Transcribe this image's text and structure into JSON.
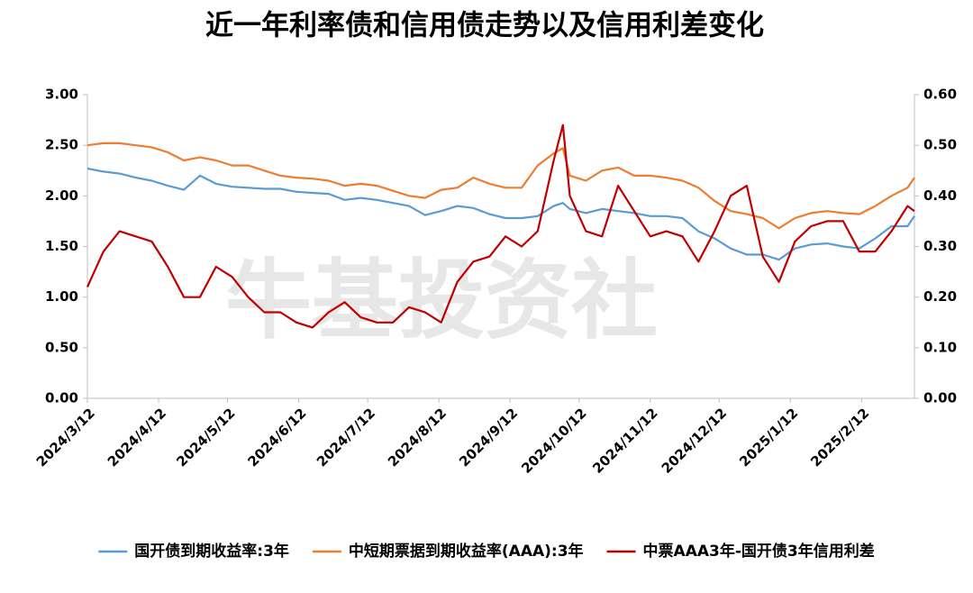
{
  "chart_data": {
    "type": "line",
    "title": "近一年利率债和信用债走势以及信用利差变化",
    "watermark": "牛基投资社",
    "x": [
      "2024/3/12",
      "2024/3/19",
      "2024/3/26",
      "2024/4/2",
      "2024/4/9",
      "2024/4/16",
      "2024/4/23",
      "2024/4/30",
      "2024/5/7",
      "2024/5/14",
      "2024/5/21",
      "2024/5/28",
      "2024/6/4",
      "2024/6/11",
      "2024/6/18",
      "2024/6/25",
      "2024/7/2",
      "2024/7/9",
      "2024/7/16",
      "2024/7/23",
      "2024/7/30",
      "2024/8/6",
      "2024/8/13",
      "2024/8/20",
      "2024/8/27",
      "2024/9/3",
      "2024/9/10",
      "2024/9/17",
      "2024/9/24",
      "2024/10/1",
      "2024/10/5",
      "2024/10/8",
      "2024/10/15",
      "2024/10/22",
      "2024/10/29",
      "2024/11/5",
      "2024/11/12",
      "2024/11/19",
      "2024/11/26",
      "2024/12/3",
      "2024/12/10",
      "2024/12/17",
      "2024/12/24",
      "2024/12/31",
      "2025/1/7",
      "2025/1/14",
      "2025/1/21",
      "2025/1/28",
      "2025/2/4",
      "2025/2/11",
      "2025/2/18",
      "2025/2/25",
      "2025/3/4",
      "2025/3/7"
    ],
    "xlim": [
      "2024/3/12",
      "2025/3/7"
    ],
    "xticks": [
      "2024/3/12",
      "2024/4/12",
      "2024/5/12",
      "2024/6/12",
      "2024/7/12",
      "2024/8/12",
      "2024/9/12",
      "2024/10/12",
      "2024/11/12",
      "2024/12/12",
      "2025/1/12",
      "2025/2/12"
    ],
    "ylim": [
      0,
      3
    ],
    "yticks": [
      {
        "value": 0,
        "label": "0.00"
      },
      {
        "value": 0.5,
        "label": "0.50"
      },
      {
        "value": 1,
        "label": "1.00"
      },
      {
        "value": 1.5,
        "label": "1.50"
      },
      {
        "value": 2,
        "label": "2.00"
      },
      {
        "value": 2.5,
        "label": "2.50"
      },
      {
        "value": 3,
        "label": "3.00"
      }
    ],
    "y2lim": [
      0,
      0.6
    ],
    "y2ticks": [
      {
        "value": 0,
        "label": "0.00"
      },
      {
        "value": 0.1,
        "label": "0.10"
      },
      {
        "value": 0.2,
        "label": "0.20"
      },
      {
        "value": 0.3,
        "label": "0.30"
      },
      {
        "value": 0.4,
        "label": "0.40"
      },
      {
        "value": 0.5,
        "label": "0.50"
      },
      {
        "value": 0.6,
        "label": "0.60"
      }
    ],
    "legend": "bottom",
    "series": [
      {
        "name": "国开债到期收益率:3年",
        "color": "#5b9bd5",
        "values": [
          2.27,
          2.24,
          2.22,
          2.18,
          2.15,
          2.1,
          2.06,
          2.2,
          2.12,
          2.09,
          2.08,
          2.07,
          2.07,
          2.04,
          2.03,
          2.02,
          1.96,
          1.98,
          1.96,
          1.93,
          1.9,
          1.81,
          1.85,
          1.9,
          1.88,
          1.82,
          1.78,
          1.78,
          1.8,
          1.9,
          1.93,
          1.87,
          1.83,
          1.87,
          1.85,
          1.83,
          1.8,
          1.8,
          1.78,
          1.65,
          1.58,
          1.48,
          1.42,
          1.42,
          1.37,
          1.48,
          1.52,
          1.53,
          1.5,
          1.48,
          1.58,
          1.7,
          1.7,
          1.8
        ]
      },
      {
        "name": "中短期票据到期收益率(AAA):3年",
        "color": "#ed7d31",
        "values": [
          2.5,
          2.52,
          2.52,
          2.5,
          2.48,
          2.43,
          2.35,
          2.38,
          2.35,
          2.3,
          2.3,
          2.25,
          2.2,
          2.18,
          2.17,
          2.15,
          2.1,
          2.12,
          2.1,
          2.05,
          2.0,
          1.98,
          2.06,
          2.08,
          2.18,
          2.12,
          2.08,
          2.08,
          2.3,
          2.42,
          2.47,
          2.2,
          2.15,
          2.25,
          2.28,
          2.2,
          2.2,
          2.18,
          2.15,
          2.08,
          1.95,
          1.85,
          1.82,
          1.78,
          1.68,
          1.78,
          1.83,
          1.85,
          1.83,
          1.82,
          1.9,
          2.0,
          2.08,
          2.18
        ]
      },
      {
        "name": "中票AAA3年-国开债3年信用利差",
        "color": "#c00000",
        "axis": "y2",
        "values": [
          0.22,
          0.29,
          0.33,
          0.32,
          0.31,
          0.26,
          0.2,
          0.2,
          0.26,
          0.24,
          0.2,
          0.17,
          0.17,
          0.15,
          0.14,
          0.17,
          0.19,
          0.16,
          0.15,
          0.15,
          0.18,
          0.17,
          0.15,
          0.23,
          0.27,
          0.28,
          0.32,
          0.3,
          0.33,
          0.47,
          0.54,
          0.4,
          0.33,
          0.32,
          0.42,
          0.37,
          0.32,
          0.33,
          0.32,
          0.27,
          0.33,
          0.4,
          0.42,
          0.28,
          0.23,
          0.31,
          0.34,
          0.35,
          0.35,
          0.29,
          0.29,
          0.33,
          0.38,
          0.37
        ]
      }
    ]
  }
}
